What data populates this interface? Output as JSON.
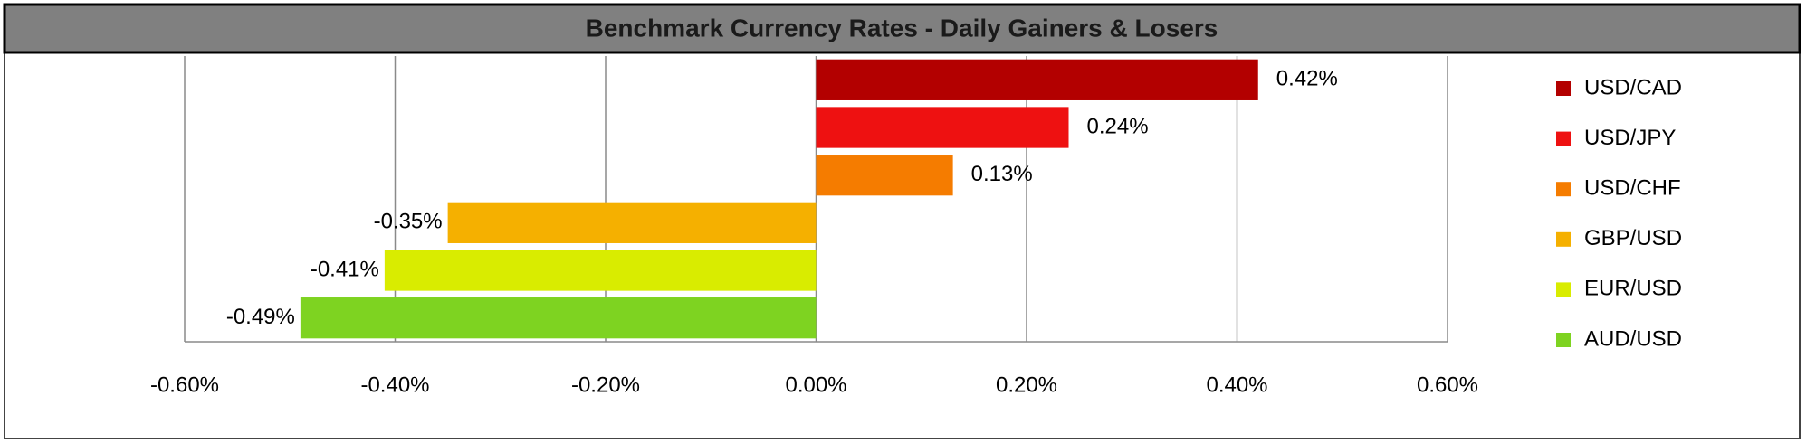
{
  "chart_data": {
    "type": "bar",
    "orientation": "horizontal",
    "title": "Benchmark Currency Rates - Daily Gainers & Losers",
    "series": [
      {
        "name": "USD/CAD",
        "color": "#b30000",
        "values": [
          0.42
        ],
        "value_labels": [
          "0.42%"
        ]
      },
      {
        "name": "USD/JPY",
        "color": "#ee1111",
        "values": [
          0.24
        ],
        "value_labels": [
          "0.24%"
        ]
      },
      {
        "name": "USD/CHF",
        "color": "#f57c00",
        "values": [
          0.13
        ],
        "value_labels": [
          "0.13%"
        ]
      },
      {
        "name": "GBP/USD",
        "color": "#f5b000",
        "values": [
          -0.35
        ],
        "value_labels": [
          "-0.35%"
        ]
      },
      {
        "name": "EUR/USD",
        "color": "#d9ec00",
        "values": [
          -0.41
        ],
        "value_labels": [
          "-0.41%"
        ]
      },
      {
        "name": "AUD/USD",
        "color": "#7ed321",
        "values": [
          -0.49
        ],
        "value_labels": [
          "-0.49%"
        ]
      }
    ],
    "xlim": [
      -0.6,
      0.6
    ],
    "xticks": [
      {
        "value": -0.6,
        "label": "-0.60%"
      },
      {
        "value": -0.4,
        "label": "-0.40%"
      },
      {
        "value": -0.2,
        "label": "-0.20%"
      },
      {
        "value": 0,
        "label": "0.00%"
      },
      {
        "value": 0.2,
        "label": "0.20%"
      },
      {
        "value": 0.4,
        "label": "0.40%"
      },
      {
        "value": 0.6,
        "label": "0.60%"
      }
    ],
    "grid": true,
    "legend": "right"
  }
}
